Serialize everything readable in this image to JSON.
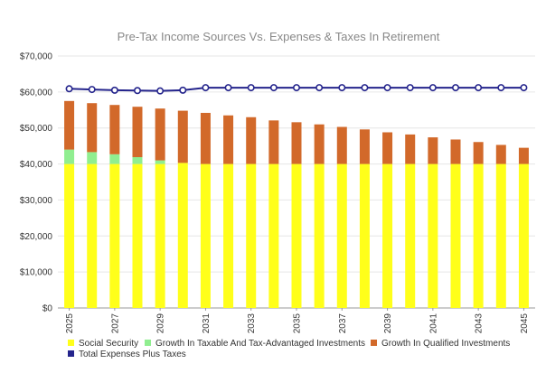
{
  "colors": {
    "social_security": "#ffff1a",
    "growth_taxable": "#90ee90",
    "growth_qualified": "#d2692a",
    "total_line": "#24248c",
    "grid": "#e6e6e6",
    "axis": "#999999"
  },
  "chart_data": {
    "type": "bar",
    "stacked": true,
    "title": "Pre-Tax Income Sources Vs. Expenses & Taxes In Retirement",
    "xlabel": "",
    "ylabel": "",
    "ylim": [
      0,
      70000
    ],
    "yticks": [
      0,
      10000,
      20000,
      30000,
      40000,
      50000,
      60000,
      70000
    ],
    "ytick_labels": [
      "$0",
      "$10,000",
      "$20,000",
      "$30,000",
      "$40,000",
      "$50,000",
      "$60,000",
      "$70,000"
    ],
    "categories": [
      "2025",
      "2026",
      "2027",
      "2028",
      "2029",
      "2030",
      "2031",
      "2032",
      "2033",
      "2034",
      "2035",
      "2036",
      "2037",
      "2038",
      "2039",
      "2040",
      "2041",
      "2042",
      "2043",
      "2044",
      "2045"
    ],
    "xtick_labels": [
      "2025",
      "2027",
      "2029",
      "2031",
      "2033",
      "2035",
      "2037",
      "2039",
      "2041",
      "2043",
      "2045"
    ],
    "grid": true,
    "legend_position": "bottom",
    "series": [
      {
        "name": "Social Security",
        "kind": "bar",
        "color_key": "social_security",
        "values": [
          40000,
          40000,
          40000,
          40000,
          40000,
          40300,
          40000,
          40000,
          40000,
          40000,
          40000,
          40000,
          40000,
          40000,
          40000,
          40000,
          40000,
          40000,
          40000,
          40000,
          40000
        ]
      },
      {
        "name": "Growth In Taxable And Tax-Advantaged Investments",
        "kind": "bar",
        "color_key": "growth_taxable",
        "values": [
          4000,
          3300,
          2700,
          1900,
          1000,
          0,
          0,
          0,
          0,
          0,
          0,
          0,
          0,
          0,
          0,
          0,
          0,
          0,
          0,
          0,
          0
        ]
      },
      {
        "name": "Growth In Qualified Investments",
        "kind": "bar",
        "color_key": "growth_qualified",
        "values": [
          13500,
          13600,
          13700,
          14000,
          14400,
          14500,
          14200,
          13500,
          13000,
          12100,
          11600,
          11000,
          10300,
          9600,
          8800,
          8200,
          7400,
          6800,
          6100,
          5300,
          4500
        ]
      },
      {
        "name": "Total Expenses Plus Taxes",
        "kind": "line",
        "color_key": "total_line",
        "values": [
          60900,
          60700,
          60500,
          60400,
          60300,
          60500,
          61200,
          61200,
          61200,
          61200,
          61200,
          61200,
          61200,
          61200,
          61200,
          61200,
          61200,
          61200,
          61200,
          61200,
          61200
        ]
      }
    ]
  }
}
